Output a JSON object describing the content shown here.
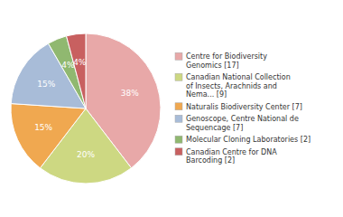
{
  "chart_data": {
    "type": "pie",
    "categories": [
      "Centre for Biodiversity\nGenomics [17]",
      "Canadian National Collection\nof Insects, Arachnids and\nNema... [9]",
      "Naturalis Biodiversity Center [7]",
      "Genoscope, Centre National de\nSequencage [7]",
      "Molecular Cloning Laboratories [2]",
      "Canadian Centre for DNA\nBarcoding [2]"
    ],
    "values": [
      38,
      20,
      15,
      15,
      4,
      4
    ],
    "value_labels": [
      "38%",
      "20%",
      "15%",
      "15%",
      "4%",
      "4%"
    ],
    "colors": [
      "#e8a8a8",
      "#cdd882",
      "#f0a850",
      "#a8bcd8",
      "#90b870",
      "#c86060"
    ],
    "data_labels": true,
    "legend": "right"
  }
}
